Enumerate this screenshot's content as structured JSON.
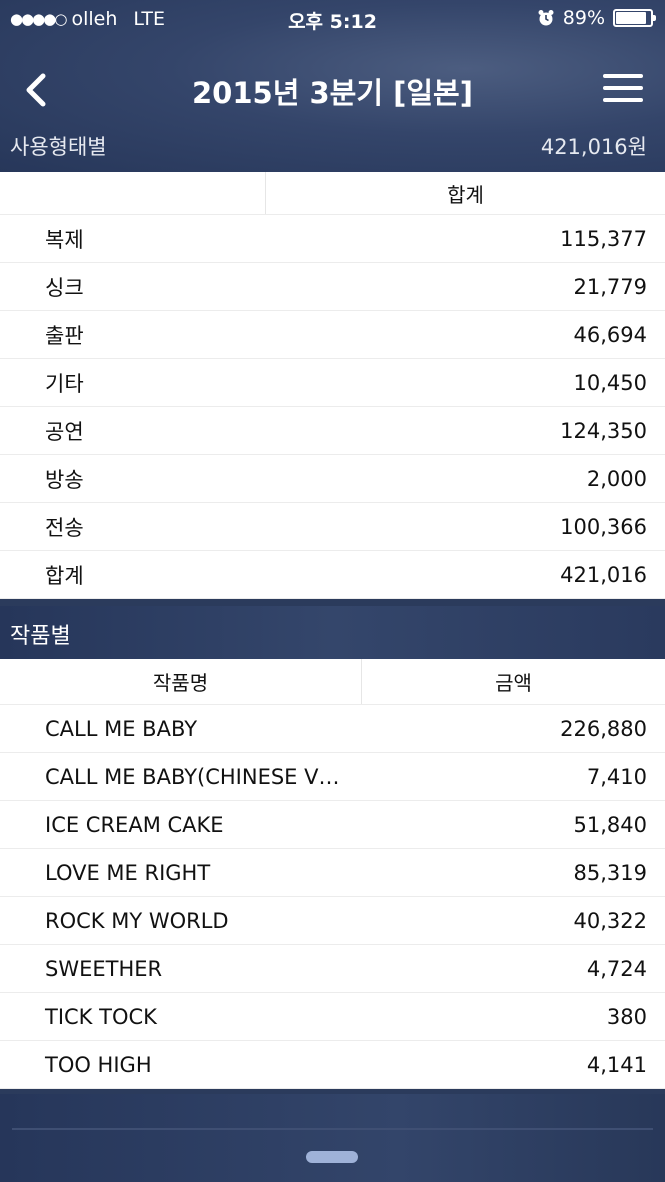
{
  "status_bar": {
    "carrier": "olleh",
    "signal_dots": "●●●●○",
    "network": "LTE",
    "time": "오후 5:12",
    "battery": "89%",
    "battery_level": 0.89
  },
  "nav": {
    "title": "2015년 3분기 [일본]"
  },
  "usage_section": {
    "title": "사용형태별",
    "total_amount": "421,016원",
    "header": [
      "",
      "합계"
    ],
    "rows": [
      {
        "name": "복제",
        "value": "115,377"
      },
      {
        "name": "싱크",
        "value": "21,779"
      },
      {
        "name": "출판",
        "value": "46,694"
      },
      {
        "name": "기타",
        "value": "10,450"
      },
      {
        "name": "공연",
        "value": "124,350"
      },
      {
        "name": "방송",
        "value": "2,000"
      },
      {
        "name": "전송",
        "value": "100,366"
      },
      {
        "name": "합계",
        "value": "421,016"
      }
    ]
  },
  "works_section": {
    "title": "작품별",
    "header": [
      "작품명",
      "금액"
    ],
    "rows": [
      {
        "name": "CALL ME BABY",
        "value": "226,880"
      },
      {
        "name": "CALL ME BABY(CHINESE V…",
        "value": "7,410"
      },
      {
        "name": "ICE CREAM CAKE",
        "value": "51,840"
      },
      {
        "name": "LOVE ME RIGHT",
        "value": "85,319"
      },
      {
        "name": "ROCK MY WORLD",
        "value": "40,322"
      },
      {
        "name": "SWEETHER",
        "value": "4,724"
      },
      {
        "name": "TICK TOCK",
        "value": "380"
      },
      {
        "name": "TOO HIGH",
        "value": "4,141"
      }
    ]
  },
  "colors": {
    "header_bg": "#2b3b5c",
    "row_bg": "#ffffff",
    "handle": "#9fb2d8"
  }
}
